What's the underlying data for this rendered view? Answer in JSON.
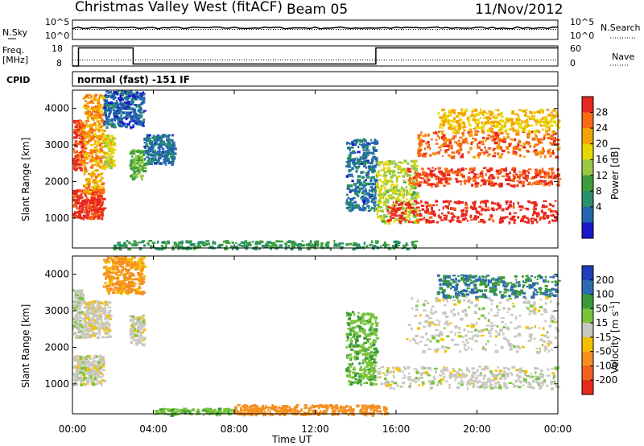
{
  "header": {
    "title": "Christmas Valley West (fitACF)",
    "beam": "Beam 05",
    "date": "11/Nov/2012"
  },
  "strips": {
    "nsky": {
      "label": "N.Sky",
      "ticks": [
        "10^5",
        "10^0"
      ],
      "right_ticks": [
        "10^5",
        "10^0"
      ],
      "right_label": "N.Search"
    },
    "freq": {
      "label": "Freq.",
      "unit": "[MHz]",
      "ticks": [
        "18",
        "8"
      ],
      "right_ticks": [
        "60",
        "0"
      ],
      "right_label": "Nave"
    },
    "cpid": {
      "label": "CPID",
      "text": "normal (fast) -151 IF"
    }
  },
  "axes": {
    "x_ticks": [
      "00:00",
      "04:00",
      "08:00",
      "12:00",
      "16:00",
      "20:00",
      "00:00"
    ],
    "xlabel": "Time UT",
    "y_ticks": [
      "4000",
      "3000",
      "2000",
      "1000"
    ],
    "ylabel": "Slant Range [km]"
  },
  "colorbars": {
    "power": {
      "label": "Power [dB]",
      "ticks": [
        "28",
        "24",
        "20",
        "16",
        "12",
        "8",
        "4"
      ],
      "colors": [
        "#e8281e",
        "#f86a14",
        "#f5a100",
        "#e7d800",
        "#98c844",
        "#3b9e3b",
        "#2a8f6a",
        "#2466ad",
        "#1818c8"
      ]
    },
    "velocity": {
      "label": "Velocity [m s",
      "label_sup": "-1",
      "label_end": "]",
      "ticks": [
        "200",
        "100",
        "50",
        "15",
        "-15",
        "-50",
        "-100",
        "-200"
      ],
      "colors": [
        "#1f3fb8",
        "#2d6bb0",
        "#3a9a3a",
        "#79c33a",
        "#c8c8c0",
        "#f5c000",
        "#f59020",
        "#f06020",
        "#e82818"
      ]
    }
  },
  "chart_data": [
    {
      "type": "line",
      "title": "N.Sky / N.Search",
      "x": [
        0,
        24
      ],
      "ylim_log10": [
        0,
        5
      ],
      "series": [
        {
          "name": "N.Sky",
          "level_log10": 3.0
        },
        {
          "name": "N.Search",
          "level_log10": 2.6
        }
      ]
    },
    {
      "type": "line",
      "title": "Freq. / Nave",
      "xlim_hours": [
        0,
        24
      ],
      "ylim": [
        8,
        18
      ],
      "series": [
        {
          "name": "Freq.",
          "x": [
            0,
            0.3,
            0.3,
            3,
            3,
            15,
            15,
            24
          ],
          "y": [
            8,
            8,
            17,
            17,
            9,
            9,
            17,
            17
          ]
        },
        {
          "name": "Nave",
          "x": [
            0,
            24
          ],
          "y": [
            11,
            11
          ]
        }
      ]
    },
    {
      "type": "heatmap",
      "title": "Power",
      "xlim_hours": [
        0,
        24
      ],
      "ylim_km": [
        180,
        4500
      ],
      "clim_db": [
        0,
        30
      ],
      "regions": [
        {
          "t0": 0.0,
          "t1": 1.5,
          "r0": 1000,
          "r1": 1800,
          "value": 28
        },
        {
          "t0": 0.0,
          "t1": 0.5,
          "r0": 2300,
          "r1": 3700,
          "value": 26
        },
        {
          "t0": 0.5,
          "t1": 1.5,
          "r0": 1700,
          "r1": 4400,
          "value": 22
        },
        {
          "t0": 1.5,
          "t1": 2.0,
          "r0": 2400,
          "r1": 3300,
          "value": 18
        },
        {
          "t0": 2.8,
          "t1": 3.5,
          "r0": 2100,
          "r1": 2900,
          "value": 13
        },
        {
          "t0": 3.5,
          "t1": 5.0,
          "r0": 2500,
          "r1": 3300,
          "value": 6
        },
        {
          "t0": 1.5,
          "t1": 3.5,
          "r0": 3500,
          "r1": 4500,
          "value": 5
        },
        {
          "t0": 2.0,
          "t1": 17.0,
          "r0": 180,
          "r1": 400,
          "value": 10
        },
        {
          "t0": 13.5,
          "t1": 15.0,
          "r0": 1200,
          "r1": 3200,
          "value": 6
        },
        {
          "t0": 15.0,
          "t1": 17.0,
          "r0": 900,
          "r1": 2600,
          "value": 16
        },
        {
          "t0": 15.5,
          "t1": 24.0,
          "r0": 900,
          "r1": 1500,
          "value": 29
        },
        {
          "t0": 16.5,
          "t1": 24.0,
          "r0": 1900,
          "r1": 2400,
          "value": 27
        },
        {
          "t0": 17.0,
          "t1": 24.0,
          "r0": 2700,
          "r1": 3400,
          "value": 25
        },
        {
          "t0": 18.0,
          "t1": 24.0,
          "r0": 3400,
          "r1": 4000,
          "value": 20
        }
      ]
    },
    {
      "type": "heatmap",
      "title": "Velocity",
      "xlim_hours": [
        0,
        24
      ],
      "ylim_km": [
        180,
        4500
      ],
      "clim_ms": [
        -200,
        200
      ],
      "regions": [
        {
          "t0": 0.0,
          "t1": 1.5,
          "r0": 1000,
          "r1": 1800,
          "value": 0
        },
        {
          "t0": 0.0,
          "t1": 0.5,
          "r0": 2300,
          "r1": 3600,
          "value": 5
        },
        {
          "t0": 0.5,
          "t1": 1.8,
          "r0": 2300,
          "r1": 3300,
          "value": -5
        },
        {
          "t0": 2.8,
          "t1": 3.5,
          "r0": 2100,
          "r1": 2900,
          "value": 0
        },
        {
          "t0": 1.5,
          "t1": 3.5,
          "r0": 3500,
          "r1": 4500,
          "value": -60
        },
        {
          "t0": 4.0,
          "t1": 8.0,
          "r0": 180,
          "r1": 350,
          "value": 40
        },
        {
          "t0": 8.0,
          "t1": 15.5,
          "r0": 180,
          "r1": 450,
          "value": -70
        },
        {
          "t0": 13.5,
          "t1": 15.0,
          "r0": 1000,
          "r1": 3000,
          "value": 45
        },
        {
          "t0": 15.0,
          "t1": 24.0,
          "r0": 900,
          "r1": 1500,
          "value": 0
        },
        {
          "t0": 16.5,
          "t1": 24.0,
          "r0": 1900,
          "r1": 3400,
          "value": 0
        },
        {
          "t0": 18.0,
          "t1": 24.0,
          "r0": 3400,
          "r1": 4000,
          "value": 100
        }
      ]
    }
  ]
}
